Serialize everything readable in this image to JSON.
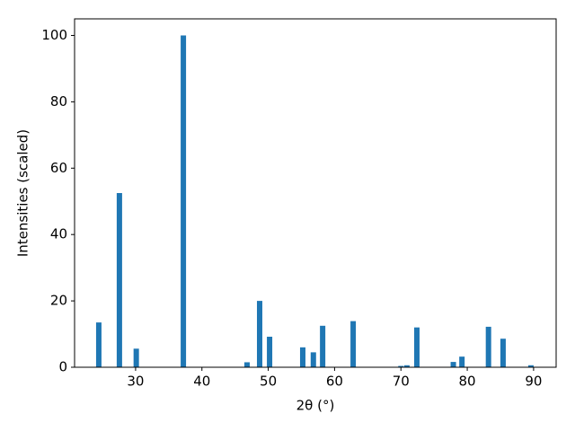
{
  "chart_data": {
    "type": "bar",
    "x": [
      24.45,
      27.56,
      30.1,
      37.2,
      46.8,
      48.7,
      50.2,
      55.2,
      56.8,
      58.2,
      62.8,
      70.0,
      70.9,
      72.4,
      77.9,
      79.2,
      83.2,
      85.4,
      89.6
    ],
    "values": [
      13.5,
      52.5,
      5.6,
      100,
      1.5,
      20,
      9.2,
      6,
      4.5,
      12.5,
      13.9,
      0.4,
      0.6,
      12,
      1.6,
      3.2,
      12.2,
      8.6,
      0.6
    ],
    "color": "#1f77b4",
    "xlabel": "2θ (°)",
    "ylabel": "Intensities (scaled)",
    "xlim": [
      20.8,
      93.4
    ],
    "ylim": [
      0,
      105
    ],
    "xticks": [
      30,
      40,
      50,
      60,
      70,
      80,
      90
    ],
    "yticks": [
      0,
      20,
      40,
      60,
      80,
      100
    ],
    "grid": false
  }
}
